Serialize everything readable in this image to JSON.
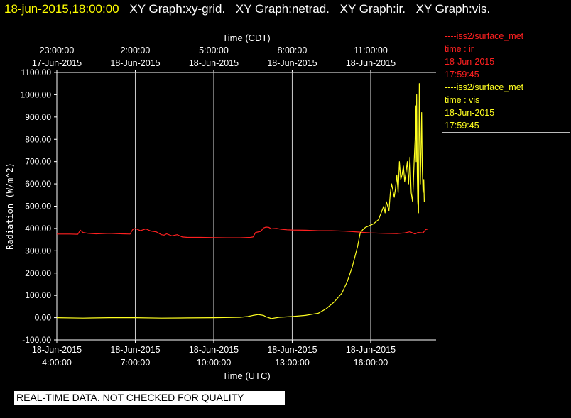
{
  "header": {
    "datetime": "18-jun-2015,18:00:00",
    "graphs": [
      "XY Graph:xy-grid.",
      "XY Graph:netrad.",
      "XY Graph:ir.",
      "XY Graph:vis."
    ]
  },
  "colors": {
    "background": "#000000",
    "ir": "#ff2020",
    "vis": "#ffff20",
    "grid": "#cccccc",
    "header_time": "#ffff00"
  },
  "legend": [
    {
      "line": "----iss2/surface_met",
      "var": "time : ir",
      "date": "18-Jun-2015",
      "time": "17:59:45"
    },
    {
      "line": "----iss2/surface_met",
      "var": "time : vis",
      "date": "18-Jun-2015",
      "time": "17:59:45"
    }
  ],
  "banner": "REAL-TIME DATA. NOT CHECKED FOR QUALITY",
  "chart_data": {
    "type": "line",
    "title": "",
    "xlabel": "Time (UTC)",
    "x2label": "Time (CDT)",
    "ylabel": "Radiation (W/m^2)",
    "ylim": [
      -100,
      1100
    ],
    "xlim": [
      4.0,
      18.5
    ],
    "x_unit": "hours UTC, 18-Jun-2015",
    "yticks": [
      "-100.00",
      "0.00",
      "100.00",
      "200.00",
      "300.00",
      "400.00",
      "500.00",
      "600.00",
      "700.00",
      "800.00",
      "900.00",
      "1000.00",
      "1100.00"
    ],
    "xticks_bottom": [
      {
        "value": 4,
        "date": "18-Jun-2015",
        "time": "4:00:00"
      },
      {
        "value": 7,
        "date": "18-Jun-2015",
        "time": "7:00:00"
      },
      {
        "value": 10,
        "date": "18-Jun-2015",
        "time": "10:00:00"
      },
      {
        "value": 13,
        "date": "18-Jun-2015",
        "time": "13:00:00"
      },
      {
        "value": 16,
        "date": "18-Jun-2015",
        "time": "16:00:00"
      }
    ],
    "xticks_top": [
      {
        "value": 4,
        "time": "23:00:00",
        "date": "17-Jun-2015"
      },
      {
        "value": 7,
        "time": "2:00:00",
        "date": "18-Jun-2015"
      },
      {
        "value": 10,
        "time": "5:00:00",
        "date": "18-Jun-2015"
      },
      {
        "value": 13,
        "time": "8:00:00",
        "date": "18-Jun-2015"
      },
      {
        "value": 16,
        "time": "11:00:00",
        "date": "18-Jun-2015"
      }
    ],
    "grid": true,
    "series": [
      {
        "name": "ir",
        "color": "#ff2020",
        "x": [
          4.0,
          4.5,
          4.8,
          4.9,
          5.0,
          5.2,
          5.5,
          6.0,
          6.5,
          6.8,
          6.9,
          7.0,
          7.2,
          7.4,
          7.6,
          7.8,
          8.0,
          8.1,
          8.2,
          8.4,
          8.6,
          8.8,
          9.0,
          9.5,
          10.0,
          10.5,
          11.0,
          11.4,
          11.5,
          11.6,
          11.8,
          11.9,
          12.0,
          12.1,
          12.2,
          12.4,
          12.6,
          12.8,
          13.0,
          13.5,
          14.0,
          14.5,
          15.0,
          15.5,
          16.0,
          16.5,
          17.0,
          17.3,
          17.5,
          17.7,
          17.8,
          18.0,
          18.1,
          18.2
        ],
        "y": [
          375,
          375,
          374,
          392,
          382,
          378,
          376,
          378,
          376,
          375,
          395,
          400,
          390,
          398,
          388,
          385,
          372,
          370,
          376,
          367,
          372,
          362,
          360,
          360,
          359,
          358,
          358,
          360,
          362,
          382,
          387,
          402,
          406,
          405,
          398,
          400,
          396,
          394,
          393,
          392,
          390,
          390,
          388,
          384,
          380,
          378,
          377,
          380,
          385,
          375,
          382,
          380,
          395,
          398
        ]
      },
      {
        "name": "vis",
        "color": "#ffff20",
        "x": [
          4.0,
          5.0,
          6.0,
          7.0,
          8.0,
          9.0,
          10.0,
          11.0,
          11.3,
          11.5,
          11.7,
          11.9,
          12.0,
          12.2,
          12.5,
          13.0,
          13.5,
          14.0,
          14.3,
          14.6,
          14.9,
          15.1,
          15.3,
          15.5,
          15.6,
          15.7,
          15.8,
          15.9,
          16.0,
          16.1,
          16.2,
          16.3,
          16.4,
          16.5,
          16.55,
          16.6,
          16.7,
          16.75,
          16.8,
          16.9,
          16.95,
          17.0,
          17.05,
          17.1,
          17.15,
          17.2,
          17.25,
          17.3,
          17.35,
          17.4,
          17.45,
          17.5,
          17.55,
          17.6,
          17.63,
          17.66,
          17.7,
          17.72,
          17.74,
          17.76,
          17.78,
          17.8,
          17.83,
          17.86,
          17.9,
          17.93,
          17.95,
          17.97,
          18.0,
          18.03,
          18.05
        ],
        "y": [
          0,
          -2,
          0,
          0,
          -2,
          -1,
          0,
          2,
          5,
          10,
          14,
          10,
          4,
          -4,
          2,
          5,
          10,
          20,
          40,
          70,
          110,
          160,
          230,
          320,
          380,
          395,
          405,
          410,
          415,
          420,
          430,
          440,
          470,
          500,
          470,
          520,
          480,
          560,
          600,
          540,
          580,
          640,
          560,
          700,
          620,
          640,
          680,
          610,
          650,
          700,
          600,
          720,
          560,
          520,
          600,
          700,
          800,
          950,
          700,
          1000,
          650,
          520,
          470,
          1050,
          600,
          800,
          920,
          680,
          560,
          620,
          520
        ]
      }
    ]
  }
}
